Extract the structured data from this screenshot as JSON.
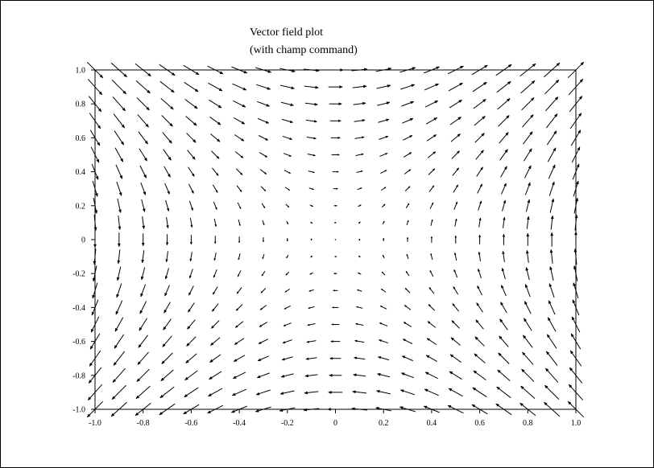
{
  "chart_data": {
    "type": "vector-field",
    "title_line1": "Vector field plot",
    "title_line2": "(with champ command)",
    "xlabel": "",
    "ylabel": "",
    "xlim": [
      -1.0,
      1.0
    ],
    "ylim": [
      -1.0,
      1.0
    ],
    "x_tick_labels": [
      "-1.0",
      "-0.8",
      "-0.6",
      "-0.4",
      "-0.2",
      "0",
      "0.2",
      "0.4",
      "0.6",
      "0.8",
      "1.0"
    ],
    "y_tick_labels": [
      "-1.0",
      "-0.8",
      "-0.6",
      "-0.4",
      "-0.2",
      "0",
      "0.2",
      "0.4",
      "0.6",
      "0.8",
      "1.0"
    ],
    "field": {
      "u": "y",
      "v": "x",
      "x_range": [
        -1.0,
        1.0
      ],
      "y_range": [
        -1.0,
        1.0
      ],
      "nx": 21,
      "ny": 21
    },
    "grid": false,
    "legend": "none"
  }
}
